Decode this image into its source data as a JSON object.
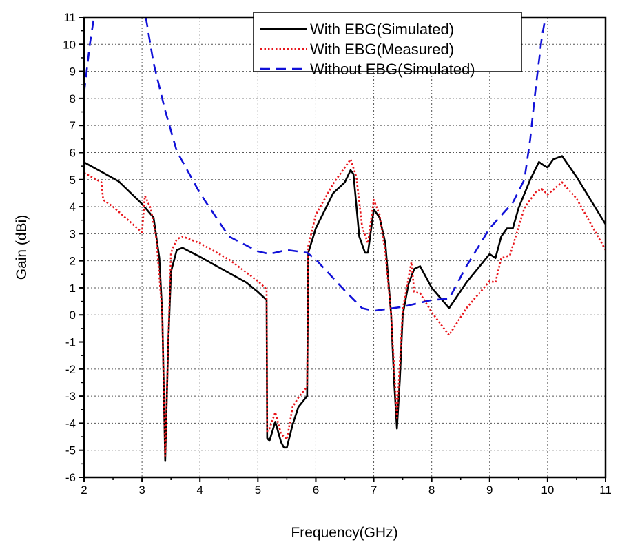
{
  "chart_data": {
    "type": "line",
    "title": "",
    "xlabel": "Frequency(GHz)",
    "ylabel": "Gain (dBi)",
    "xlim": [
      2,
      11
    ],
    "ylim": [
      -6,
      11
    ],
    "xticks": [
      "2",
      "3",
      "4",
      "5",
      "6",
      "7",
      "8",
      "9",
      "10",
      "11"
    ],
    "yticks": [
      "-6",
      "-5",
      "-4",
      "-3",
      "-2",
      "-1",
      "0",
      "1",
      "2",
      "3",
      "4",
      "5",
      "6",
      "7",
      "8",
      "9",
      "10",
      "11"
    ],
    "grid": true,
    "legend_position": "top-center",
    "series": [
      {
        "name": "With EBG(Simulated)",
        "color": "#000000",
        "style": "solid",
        "points": [
          [
            2,
            5.64
          ],
          [
            2.3,
            5.29
          ],
          [
            2.6,
            4.93
          ],
          [
            3.0,
            4.1
          ],
          [
            3.2,
            3.6
          ],
          [
            3.3,
            2.1
          ],
          [
            3.35,
            0
          ],
          [
            3.4,
            -5.4
          ],
          [
            3.45,
            -1.2
          ],
          [
            3.5,
            1.6
          ],
          [
            3.6,
            2.4
          ],
          [
            3.7,
            2.48
          ],
          [
            4.0,
            2.15
          ],
          [
            4.5,
            1.55
          ],
          [
            4.8,
            1.2
          ],
          [
            5.0,
            0.85
          ],
          [
            5.15,
            0.55
          ],
          [
            5.16,
            -4.55
          ],
          [
            5.2,
            -4.65
          ],
          [
            5.3,
            -3.95
          ],
          [
            5.4,
            -4.7
          ],
          [
            5.45,
            -4.9
          ],
          [
            5.5,
            -4.9
          ],
          [
            5.6,
            -4.05
          ],
          [
            5.7,
            -3.4
          ],
          [
            5.85,
            -3.0
          ],
          [
            5.87,
            2.3
          ],
          [
            6.0,
            3.2
          ],
          [
            6.3,
            4.5
          ],
          [
            6.5,
            4.9
          ],
          [
            6.6,
            5.35
          ],
          [
            6.65,
            5.2
          ],
          [
            6.75,
            2.9
          ],
          [
            6.85,
            2.3
          ],
          [
            6.9,
            2.3
          ],
          [
            7.0,
            3.9
          ],
          [
            7.1,
            3.6
          ],
          [
            7.2,
            2.65
          ],
          [
            7.3,
            0
          ],
          [
            7.35,
            -2.4
          ],
          [
            7.4,
            -4.2
          ],
          [
            7.45,
            -2.4
          ],
          [
            7.5,
            0
          ],
          [
            7.6,
            1.15
          ],
          [
            7.7,
            1.7
          ],
          [
            7.8,
            1.8
          ],
          [
            8.0,
            1.0
          ],
          [
            8.3,
            0.25
          ],
          [
            8.6,
            1.2
          ],
          [
            9.0,
            2.25
          ],
          [
            9.1,
            2.1
          ],
          [
            9.2,
            2.9
          ],
          [
            9.3,
            3.2
          ],
          [
            9.4,
            3.2
          ],
          [
            9.5,
            3.95
          ],
          [
            9.7,
            5.0
          ],
          [
            9.85,
            5.65
          ],
          [
            9.95,
            5.5
          ],
          [
            10.0,
            5.45
          ],
          [
            10.1,
            5.75
          ],
          [
            10.25,
            5.87
          ],
          [
            10.5,
            5.1
          ],
          [
            11.0,
            3.35
          ]
        ]
      },
      {
        "name": "With EBG(Measured)",
        "color": "#e8161c",
        "style": "dotted",
        "points": [
          [
            2,
            5.25
          ],
          [
            2.3,
            4.9
          ],
          [
            2.33,
            4.25
          ],
          [
            2.5,
            4.0
          ],
          [
            3.0,
            3.05
          ],
          [
            3.05,
            4.4
          ],
          [
            3.15,
            3.95
          ],
          [
            3.25,
            2.8
          ],
          [
            3.35,
            0
          ],
          [
            3.4,
            -5.2
          ],
          [
            3.45,
            -1.2
          ],
          [
            3.5,
            2.3
          ],
          [
            3.6,
            2.8
          ],
          [
            3.7,
            2.9
          ],
          [
            4.0,
            2.65
          ],
          [
            4.5,
            2.05
          ],
          [
            5.0,
            1.25
          ],
          [
            5.15,
            0.95
          ],
          [
            5.16,
            -4.3
          ],
          [
            5.2,
            -4.2
          ],
          [
            5.3,
            -3.6
          ],
          [
            5.4,
            -4.4
          ],
          [
            5.5,
            -4.6
          ],
          [
            5.6,
            -3.4
          ],
          [
            5.7,
            -3.05
          ],
          [
            5.85,
            -2.65
          ],
          [
            5.87,
            2.55
          ],
          [
            6.0,
            3.7
          ],
          [
            6.3,
            4.85
          ],
          [
            6.6,
            5.75
          ],
          [
            6.7,
            5.1
          ],
          [
            6.8,
            3.25
          ],
          [
            6.9,
            2.65
          ],
          [
            7.0,
            4.25
          ],
          [
            7.1,
            3.7
          ],
          [
            7.2,
            2.3
          ],
          [
            7.3,
            0
          ],
          [
            7.4,
            -3.8
          ],
          [
            7.5,
            0.2
          ],
          [
            7.65,
            1.95
          ],
          [
            7.7,
            0.85
          ],
          [
            7.8,
            0.8
          ],
          [
            8.0,
            0.1
          ],
          [
            8.3,
            -0.75
          ],
          [
            8.6,
            0.25
          ],
          [
            9.0,
            1.25
          ],
          [
            9.1,
            1.2
          ],
          [
            9.2,
            2.1
          ],
          [
            9.35,
            2.2
          ],
          [
            9.6,
            3.95
          ],
          [
            9.8,
            4.55
          ],
          [
            9.9,
            4.65
          ],
          [
            10.0,
            4.45
          ],
          [
            10.25,
            4.9
          ],
          [
            10.5,
            4.3
          ],
          [
            11.0,
            2.4
          ]
        ]
      },
      {
        "name": "Without EBG(Simulated)",
        "color": "#1010d8",
        "style": "dashed",
        "points": [
          [
            2,
            8.2
          ],
          [
            2.1,
            10
          ],
          [
            2.2,
            11.4
          ],
          [
            3.05,
            11.2
          ],
          [
            3.2,
            9.3
          ],
          [
            3.4,
            7.55
          ],
          [
            3.6,
            6.05
          ],
          [
            4.0,
            4.5
          ],
          [
            4.5,
            2.9
          ],
          [
            5.0,
            2.35
          ],
          [
            5.2,
            2.25
          ],
          [
            5.5,
            2.4
          ],
          [
            5.85,
            2.3
          ],
          [
            6.0,
            2.05
          ],
          [
            6.5,
            0.9
          ],
          [
            6.8,
            0.25
          ],
          [
            7.0,
            0.15
          ],
          [
            7.5,
            0.3
          ],
          [
            8.0,
            0.55
          ],
          [
            8.3,
            0.6
          ],
          [
            8.6,
            1.8
          ],
          [
            9.0,
            3.2
          ],
          [
            9.4,
            4.15
          ],
          [
            9.6,
            5.0
          ],
          [
            9.7,
            6.5
          ],
          [
            9.8,
            8.5
          ],
          [
            9.9,
            10.25
          ],
          [
            9.98,
            11.2
          ]
        ]
      }
    ]
  }
}
